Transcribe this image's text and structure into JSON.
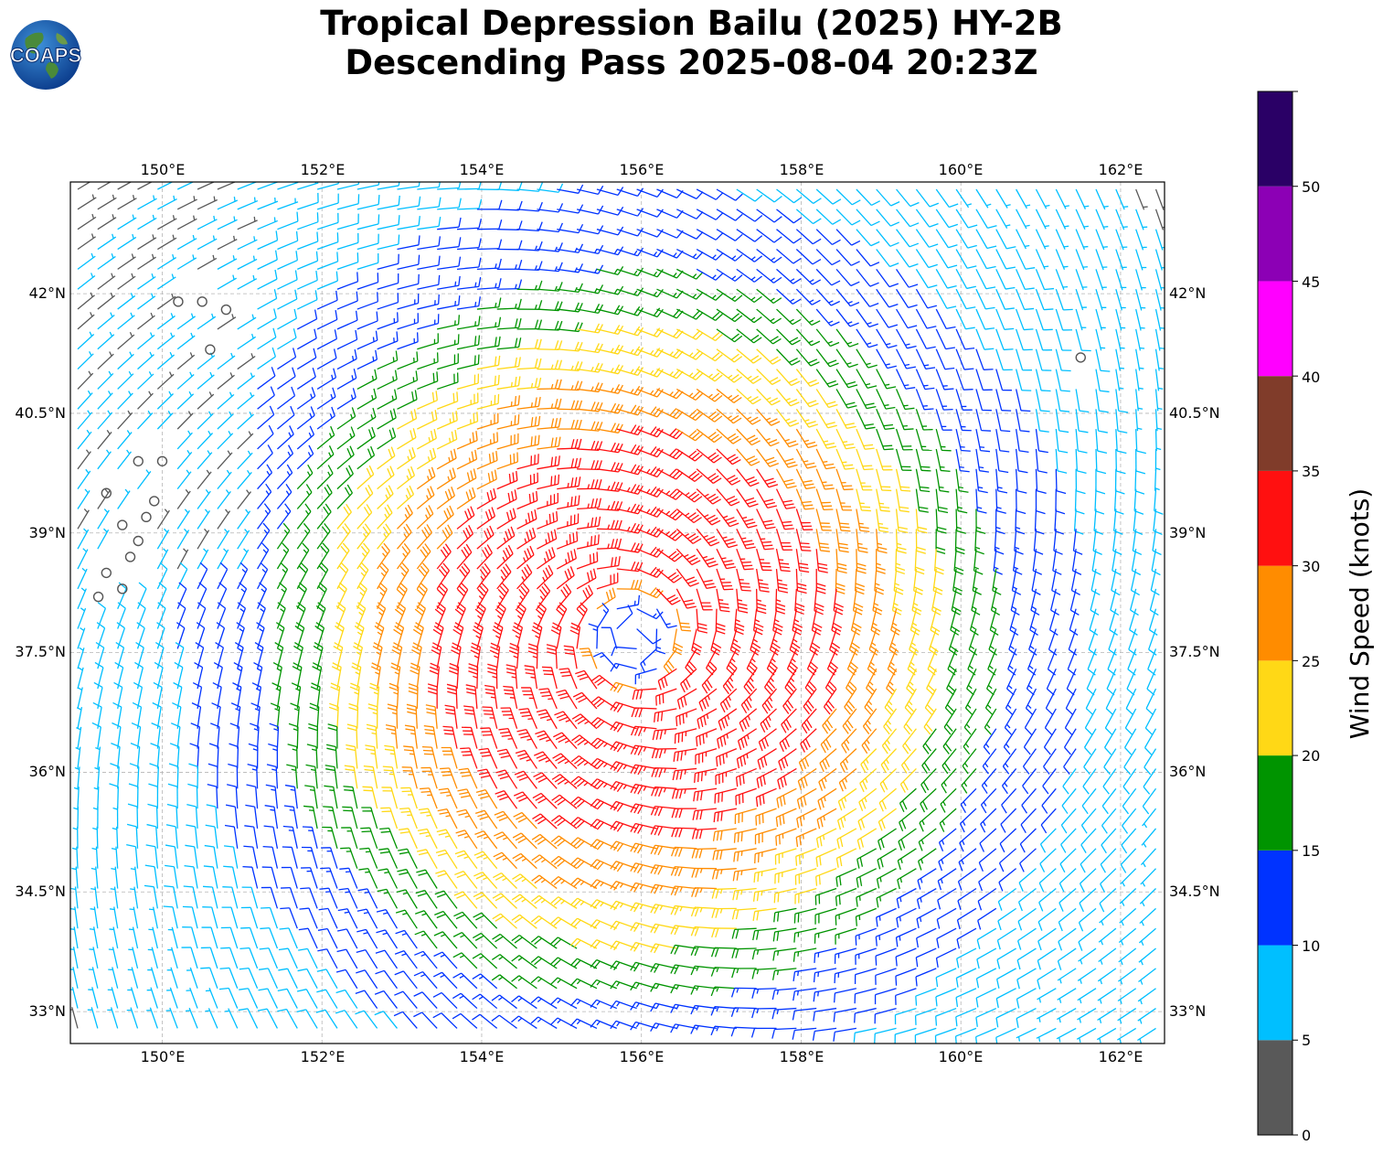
{
  "title": {
    "line1": "Tropical Depression Bailu (2025) HY-2B",
    "line2": "Descending Pass 2025-08-04 20:23Z"
  },
  "logo": {
    "text": "COAPS",
    "icon": "globe-logo-icon"
  },
  "map": {
    "lon_range": [
      148.85,
      162.55
    ],
    "lat_range": [
      32.6,
      43.4
    ],
    "lon_ticks": [
      {
        "value": 150,
        "label": "150°E"
      },
      {
        "value": 152,
        "label": "152°E"
      },
      {
        "value": 154,
        "label": "154°E"
      },
      {
        "value": 156,
        "label": "156°E"
      },
      {
        "value": 158,
        "label": "158°E"
      },
      {
        "value": 160,
        "label": "160°E"
      },
      {
        "value": 162,
        "label": "162°E"
      }
    ],
    "lat_ticks": [
      {
        "value": 33,
        "label": "33°N"
      },
      {
        "value": 34.5,
        "label": "34.5°N"
      },
      {
        "value": 36,
        "label": "36°N"
      },
      {
        "value": 37.5,
        "label": "37.5°N"
      },
      {
        "value": 39,
        "label": "39°N"
      },
      {
        "value": 40.5,
        "label": "40.5°N"
      },
      {
        "value": 42,
        "label": "42°N"
      }
    ],
    "gridlines": true,
    "field": {
      "type": "wind-barbs",
      "center_lon": 155.9,
      "center_lat": 37.7,
      "grid_step_deg": 0.25,
      "peak_speed_kt": 33,
      "calm_circles": [
        [
          149.3,
          39.5
        ],
        [
          149.5,
          39.1
        ],
        [
          149.6,
          38.7
        ],
        [
          149.3,
          38.5
        ],
        [
          149.2,
          38.2
        ],
        [
          149.5,
          38.3
        ],
        [
          149.7,
          38.9
        ],
        [
          149.8,
          39.2
        ],
        [
          149.9,
          39.4
        ],
        [
          150.0,
          39.9
        ],
        [
          149.7,
          39.9
        ],
        [
          150.2,
          41.9
        ],
        [
          150.5,
          41.9
        ],
        [
          150.8,
          41.8
        ],
        [
          150.6,
          41.3
        ],
        [
          161.5,
          41.2
        ]
      ]
    }
  },
  "colorbar": {
    "title": "Wind Speed (knots)",
    "bins": [
      {
        "from": 0,
        "to": 5,
        "color": "#595959"
      },
      {
        "from": 5,
        "to": 10,
        "color": "#00bfff"
      },
      {
        "from": 10,
        "to": 15,
        "color": "#0033ff"
      },
      {
        "from": 15,
        "to": 20,
        "color": "#009400"
      },
      {
        "from": 20,
        "to": 25,
        "color": "#ffd816"
      },
      {
        "from": 25,
        "to": 30,
        "color": "#ff8c00"
      },
      {
        "from": 30,
        "to": 35,
        "color": "#ff1010"
      },
      {
        "from": 35,
        "to": 40,
        "color": "#803c2a"
      },
      {
        "from": 40,
        "to": 45,
        "color": "#ff00ff"
      },
      {
        "from": 45,
        "to": 50,
        "color": "#8c00b5"
      },
      {
        "from": 50,
        "to": 55,
        "color": "#2a0066"
      }
    ],
    "ticks": [
      "0",
      "5",
      "10",
      "15",
      "20",
      "25",
      "30",
      "35",
      "40",
      "45",
      "50"
    ]
  }
}
